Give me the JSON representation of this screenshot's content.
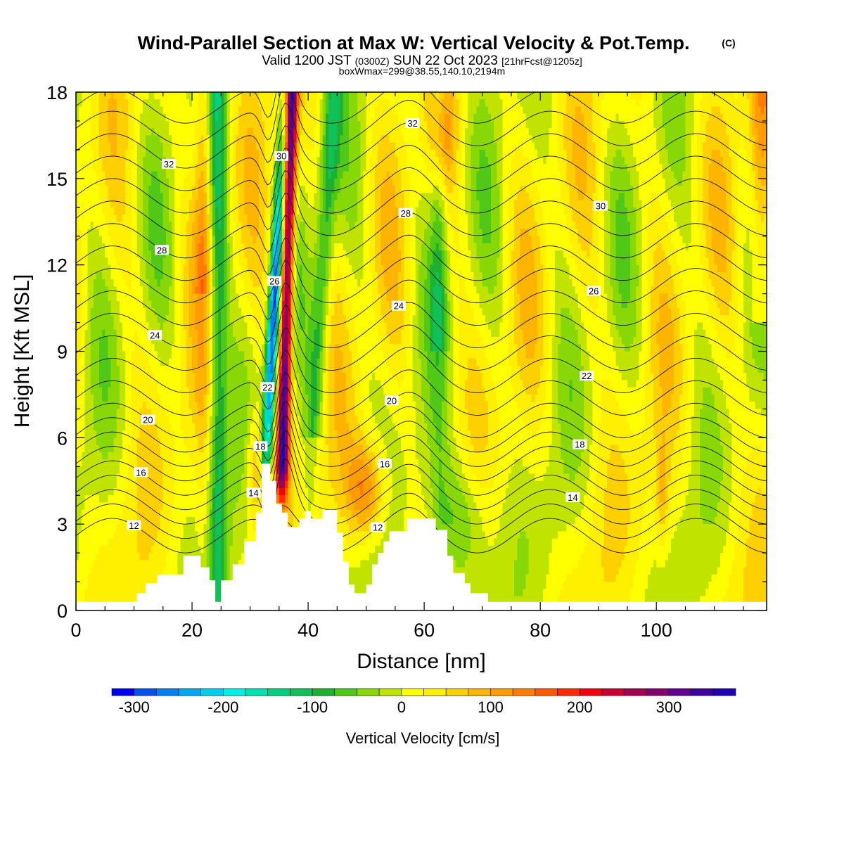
{
  "chart_data": {
    "type": "heatmap",
    "title": "Wind-Parallel Section at Max W: Vertical Velocity & Pot.Temp.",
    "title_mark": "(C)",
    "subtitle_main": "Valid 1200 JST",
    "subtitle_zulu": "(0300Z)",
    "subtitle_date": "SUN 22 Oct 2023",
    "subtitle_fcst": "[21hrFcst@1205z]",
    "subtitle_box": "boxWmax=299@38.55,140.10,2194m",
    "xlabel": "Distance [nm]",
    "ylabel": "Height [Kft MSL]",
    "xlim": [
      0,
      119
    ],
    "ylim": [
      0,
      18
    ],
    "xticks": [
      "0",
      "20",
      "40",
      "60",
      "80",
      "100"
    ],
    "yticks": [
      "0",
      "3",
      "6",
      "9",
      "12",
      "15",
      "18"
    ],
    "grid": false,
    "colorbar": {
      "label": "Vertical Velocity [cm/s]",
      "ticks": [
        "-300",
        "-200",
        "-100",
        "0",
        "100",
        "200",
        "300"
      ],
      "tick_values": [
        -300,
        -200,
        -100,
        0,
        100,
        200,
        300
      ],
      "min": -325,
      "max": 375,
      "step": 25,
      "colors": [
        "#0000f0",
        "#0050f0",
        "#0080f0",
        "#00a8f0",
        "#00d0f0",
        "#00f0e6",
        "#00e0b0",
        "#00d080",
        "#10c058",
        "#20b030",
        "#50c818",
        "#88d808",
        "#c0e400",
        "#ffff00",
        "#fff000",
        "#ffd000",
        "#ffb400",
        "#ff9c00",
        "#ff7c00",
        "#ff5a00",
        "#ff2a00",
        "#f00010",
        "#c80030",
        "#a00050",
        "#800070",
        "#600090",
        "#4000a0",
        "#2000b0"
      ]
    },
    "theta_contour_labels": [
      "12",
      "14",
      "16",
      "18",
      "20",
      "22",
      "24",
      "26",
      "28",
      "30",
      "32"
    ],
    "terrain_profile_kft": [
      [
        0,
        0.3
      ],
      [
        10.5,
        0.3
      ],
      [
        10.5,
        0.6
      ],
      [
        12,
        0.6
      ],
      [
        12,
        0.95
      ],
      [
        14,
        0.95
      ],
      [
        14,
        1.25
      ],
      [
        18.5,
        1.25
      ],
      [
        18.5,
        1.9
      ],
      [
        21.5,
        1.9
      ],
      [
        21.5,
        1.5
      ],
      [
        23,
        1.5
      ],
      [
        23,
        1.05
      ],
      [
        24,
        1.05
      ],
      [
        24,
        0.3
      ],
      [
        25,
        0.3
      ],
      [
        25,
        1.05
      ],
      [
        27,
        1.05
      ],
      [
        27,
        1.6
      ],
      [
        29,
        1.6
      ],
      [
        29,
        2.4
      ],
      [
        31,
        2.4
      ],
      [
        31,
        3.4
      ],
      [
        32,
        3.4
      ],
      [
        32,
        5.1
      ],
      [
        33.5,
        5.1
      ],
      [
        33.5,
        4.5
      ],
      [
        34.5,
        4.5
      ],
      [
        34.5,
        3.7
      ],
      [
        35.5,
        3.7
      ],
      [
        35.5,
        3.4
      ],
      [
        36.5,
        3.4
      ],
      [
        36.5,
        2.9
      ],
      [
        38.5,
        2.9
      ],
      [
        38.5,
        3.2
      ],
      [
        39.5,
        3.2
      ],
      [
        39.5,
        3.45
      ],
      [
        40.5,
        3.45
      ],
      [
        40.5,
        3.2
      ],
      [
        42.5,
        3.2
      ],
      [
        42.5,
        3.5
      ],
      [
        45,
        3.5
      ],
      [
        45,
        2.7
      ],
      [
        46,
        2.7
      ],
      [
        46,
        1.7
      ],
      [
        47,
        1.7
      ],
      [
        47,
        0.9
      ],
      [
        48,
        0.9
      ],
      [
        48,
        0.6
      ],
      [
        50,
        0.6
      ],
      [
        50,
        0.9
      ],
      [
        51,
        0.9
      ],
      [
        51,
        1.6
      ],
      [
        52,
        1.6
      ],
      [
        52,
        2.0
      ],
      [
        53,
        2.0
      ],
      [
        53,
        2.4
      ],
      [
        54,
        2.4
      ],
      [
        54,
        2.75
      ],
      [
        57,
        2.75
      ],
      [
        57,
        3.2
      ],
      [
        62,
        3.2
      ],
      [
        62,
        2.8
      ],
      [
        64,
        2.8
      ],
      [
        64,
        1.9
      ],
      [
        65,
        1.9
      ],
      [
        65,
        1.3
      ],
      [
        67,
        1.3
      ],
      [
        67,
        0.95
      ],
      [
        68,
        0.95
      ],
      [
        68,
        0.6
      ],
      [
        71,
        0.6
      ],
      [
        71,
        0.3
      ],
      [
        119,
        0.3
      ]
    ]
  }
}
